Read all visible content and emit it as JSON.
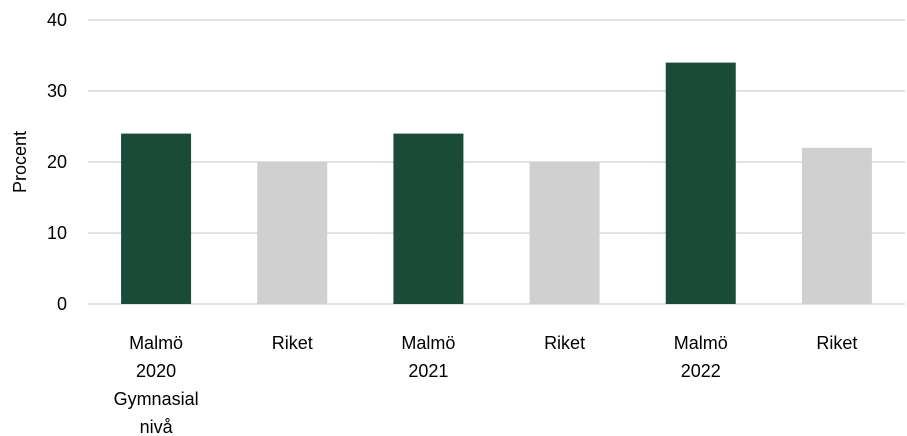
{
  "chart_data": {
    "type": "bar",
    "ylabel": "Procent",
    "xlabel": "",
    "title": "",
    "ylim": [
      0,
      40
    ],
    "yticks": [
      0,
      10,
      20,
      30,
      40
    ],
    "grid": true,
    "categories": [
      [
        "Malmö",
        "2020",
        "Gymnasial",
        "nivå"
      ],
      [
        "Riket"
      ],
      [
        "Malmö",
        "2021"
      ],
      [
        "Riket"
      ],
      [
        "Malmö",
        "2022"
      ],
      [
        "Riket"
      ]
    ],
    "values": [
      24,
      20,
      24,
      20,
      34,
      22
    ],
    "bar_colors": [
      "#1a4a38",
      "#d0d0d0",
      "#1a4a38",
      "#d0d0d0",
      "#1a4a38",
      "#d0d0d0"
    ]
  }
}
